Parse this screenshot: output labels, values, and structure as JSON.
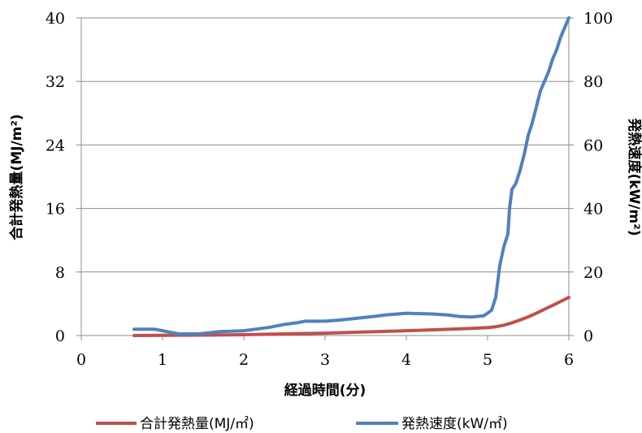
{
  "chart_data": {
    "type": "line",
    "xlabel": "経過時間(分)",
    "xlim": [
      0,
      6
    ],
    "x_ticks": [
      "0",
      "1",
      "2",
      "3",
      "4",
      "5",
      "6"
    ],
    "y_left": {
      "label": "合計発熱量(MJ/m²)",
      "lim": [
        0,
        40
      ],
      "ticks": [
        "0",
        "8",
        "16",
        "24",
        "32",
        "40"
      ]
    },
    "y_right": {
      "label": "発熱速度(kW/m²)",
      "lim": [
        0,
        100
      ],
      "ticks": [
        "0",
        "20",
        "40",
        "60",
        "80",
        "100"
      ]
    },
    "grid": "horizontal",
    "legend_position": "bottom",
    "series": [
      {
        "name": "合計発熱量(MJ/㎡)",
        "axis": "left",
        "color": "#c0504d",
        "x": [
          0.65,
          1.0,
          1.5,
          2.0,
          2.5,
          3.0,
          3.5,
          4.0,
          4.5,
          4.8,
          5.0,
          5.1,
          5.2,
          5.3,
          5.4,
          5.5,
          5.6,
          5.7,
          5.8,
          5.9,
          6.0
        ],
        "y": [
          0.0,
          0.02,
          0.05,
          0.1,
          0.2,
          0.3,
          0.45,
          0.6,
          0.78,
          0.9,
          1.0,
          1.1,
          1.3,
          1.6,
          1.95,
          2.35,
          2.8,
          3.3,
          3.8,
          4.3,
          4.8
        ]
      },
      {
        "name": "発熱速度(kW/㎡)",
        "axis": "right",
        "color": "#4f81bd",
        "x": [
          0.65,
          0.7,
          0.9,
          1.0,
          1.1,
          1.2,
          1.45,
          1.7,
          2.0,
          2.15,
          2.3,
          2.4,
          2.5,
          2.65,
          2.75,
          3.0,
          3.15,
          3.3,
          3.45,
          3.6,
          3.75,
          4.0,
          4.3,
          4.5,
          4.65,
          4.8,
          4.95,
          5.0,
          5.05,
          5.1,
          5.15,
          5.2,
          5.25,
          5.27,
          5.3,
          5.35,
          5.4,
          5.45,
          5.5,
          5.55,
          5.6,
          5.65,
          5.7,
          5.75,
          5.8,
          5.85,
          5.9,
          5.95,
          6.0
        ],
        "y": [
          2,
          2,
          2,
          1.5,
          1,
          0.5,
          0.5,
          1.2,
          1.5,
          2.0,
          2.5,
          3.0,
          3.5,
          4.0,
          4.5,
          4.5,
          4.8,
          5.2,
          5.6,
          6.0,
          6.5,
          7.0,
          6.8,
          6.5,
          6.0,
          5.8,
          6.2,
          7.0,
          8.0,
          12.0,
          22.0,
          28.0,
          32.0,
          40.0,
          46.0,
          48.0,
          52.0,
          57.0,
          63.0,
          67.0,
          72.0,
          77.0,
          80.0,
          83.0,
          87.0,
          90.0,
          94.0,
          97.0,
          100.0
        ]
      }
    ]
  }
}
